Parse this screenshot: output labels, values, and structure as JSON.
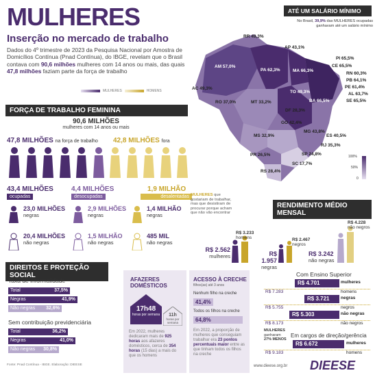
{
  "title": "MULHERES",
  "subtitle": "Inserção no mercado de trabalho",
  "intro": {
    "p1": "Dados do 4º trimestre de 2023 da Pesquisa Nacional por Amostra de Domicílios Contínua (Pnad Contínua), do IBGE, revelam que o Brasil contava com ",
    "b1": "90,6 milhões",
    "p2": " mulheres com 14 anos ou mais, das quais ",
    "b2": "47,8 milhões",
    "p3": " faziam parte da força de trabalho"
  },
  "legend": {
    "women": "MULHERES",
    "men": "HOMENS"
  },
  "map": {
    "header": "ATÉ UM SALÁRIO MÍNIMO",
    "note1": "No Brasil, ",
    "note_pct": "39,9%",
    "note2": " das MULHERES ocupadas",
    "note3": "ganhavam até um salário mínimo",
    "scale_max": "100%",
    "scale_mid": "50%",
    "scale_min": "0",
    "states": [
      {
        "uf": "RR",
        "v": "49,3%"
      },
      {
        "uf": "AP",
        "v": "43,1%"
      },
      {
        "uf": "AM",
        "v": "57,0%"
      },
      {
        "uf": "PA",
        "v": "62,3%"
      },
      {
        "uf": "MA",
        "v": "66,3%"
      },
      {
        "uf": "PI",
        "v": "65,5%"
      },
      {
        "uf": "CE",
        "v": "65,5%"
      },
      {
        "uf": "RN",
        "v": "60,3%"
      },
      {
        "uf": "PB",
        "v": "64,1%"
      },
      {
        "uf": "PE",
        "v": "61,4%"
      },
      {
        "uf": "AL",
        "v": "63,7%"
      },
      {
        "uf": "SE",
        "v": "65,5%"
      },
      {
        "uf": "AC",
        "v": "49,3%"
      },
      {
        "uf": "TO",
        "v": "49,3%"
      },
      {
        "uf": "RO",
        "v": "37,0%"
      },
      {
        "uf": "MT",
        "v": "33,2%"
      },
      {
        "uf": "BA",
        "v": "66,5%"
      },
      {
        "uf": "DF",
        "v": "28,3%"
      },
      {
        "uf": "GO",
        "v": "42,4%"
      },
      {
        "uf": "MG",
        "v": "43,8%"
      },
      {
        "uf": "MS",
        "v": "32,9%"
      },
      {
        "uf": "ES",
        "v": "40,5%"
      },
      {
        "uf": "RJ",
        "v": "35,3%"
      },
      {
        "uf": "SP",
        "v": "24,8%"
      },
      {
        "uf": "PR",
        "v": "26,5%"
      },
      {
        "uf": "SC",
        "v": "17,7%"
      },
      {
        "uf": "RS",
        "v": "28,4%"
      }
    ]
  },
  "force": {
    "header": "FORÇA DE TRABALHO FEMININA",
    "total": "90,6 MILHÕES",
    "total_sub": "mulheres com 14 anos ou mais",
    "in": "47,8 MILHÕES",
    "in_sub": "na força de trabalho",
    "out": "42,8 MILHÕES",
    "out_sub": "fora",
    "occupied": "43,4 MILHÕES",
    "occupied_tag": "ocupadas",
    "unemployed": "4,4 MILHÕES",
    "unemployed_tag": "desocupadas",
    "discouraged": "1,9 MILHÃO",
    "discouraged_tag": "desalentadas",
    "occ_black": "23,0 MILHÕES",
    "occ_black_sub": "negras",
    "occ_nonblack": "20,4 MILHÕES",
    "occ_nonblack_sub": "não negras",
    "un_black": "2,9 MILHÕES",
    "un_black_sub": "negras",
    "un_nonblack": "1,5 MILHÃO",
    "un_nonblack_sub": "não negras",
    "dis_black": "1,4 MILHÃO",
    "dis_black_sub": "negras",
    "dis_nonblack": "485 MIL",
    "dis_nonblack_sub": "não negras",
    "dis_note_b": "MULHERES",
    "dis_note": " que gostariam de trabalhar, mas que desistiram de procurar porque acham que não vão encontrar"
  },
  "rights": {
    "header": "DIREITOS E PROTEÇÃO SOCIAL",
    "inf": "Taxa de informalidade",
    "inf_rows": [
      {
        "l": "Total",
        "v": "37,5%",
        "f": 0.375
      },
      {
        "l": "Negras",
        "v": "41,9%",
        "f": 0.419
      },
      {
        "l": "Não negras",
        "v": "32,6%",
        "f": 0.326
      }
    ],
    "prev": "Sem contribuição previdenciária",
    "prev_rows": [
      {
        "l": "Total",
        "v": "36,2%",
        "f": 0.362
      },
      {
        "l": "Negras",
        "v": "41,0%",
        "f": 0.41
      },
      {
        "l": "Não negras",
        "v": "30,8%",
        "f": 0.308
      }
    ],
    "source": "Fonte: Pnad Contínua - IBGE. Elaboração: DIEESE"
  },
  "domestic": {
    "title": "AFAZERES DOMÉSTICOS",
    "women_h": "17h48",
    "women_sub": "horas por semana",
    "men_h": "11h",
    "men_sub": "horas por semana",
    "text1": "Em 2022, mulheres dedicaram mais de ",
    "b1": "925 horas",
    "text2": " aos afazeres domésticos, cerca de ",
    "b2": "354 horas",
    "text3": " (15 dias) a mais do que os homens"
  },
  "daycare": {
    "title": "ACESSO À CRECHE",
    "sub": "filhos(as) até 3 anos",
    "none_lbl": "Nenhum filho na creche",
    "none_v": "41,4%",
    "all_lbl": "Todos os filhos na creche",
    "all_v": "64,8%",
    "text1": "Em 2022, a proporção de mulheres que conseguiam trabalhar era ",
    "b1": "23 pontos percentuais maior",
    "text2": " entre as que tinham todos os filhos na creche"
  },
  "income": {
    "header": "RENDIMENTO MÉDIO MENSAL",
    "women": "R$ 2.562",
    "women_sub": "mulheres",
    "men": "R$ 3.233",
    "men_sub": "homens",
    "black": "R$ 1.957",
    "black_sub": "negras",
    "black_men": "R$ 2.467",
    "black_men_sub": "negros",
    "nonblack": "R$ 3.242",
    "nonblack_sub": "não negras",
    "nonblack_men": "R$ 4.228",
    "nonblack_men_sub": "não negros",
    "higher": "Com Ensino Superior",
    "higher_rows": [
      {
        "m": "R$ 4.701",
        "ml": "mulheres",
        "w": "R$ 7.283",
        "wl": "homens",
        "f": 0.645
      },
      {
        "m": "R$ 3.721",
        "ml": "negras",
        "w": "R$ 5.755",
        "wl": "negros",
        "f": 0.51
      },
      {
        "m": "R$ 5.303",
        "ml": "não negras",
        "w": "R$ 8.173",
        "wl": "não negros",
        "f": 0.73
      }
    ],
    "leader": "Em cargos de direção/gerência",
    "leader_m": "R$ 6.672",
    "leader_ml": "mulheres",
    "leader_w": "R$ 9.183",
    "leader_wl": "homens",
    "leader_note1": "MULHERES",
    "leader_note2": "ganharam",
    "leader_note3": "27% MENOS"
  },
  "footer": {
    "url": "www.dieese.org.br",
    "logo": "DIEESE"
  }
}
